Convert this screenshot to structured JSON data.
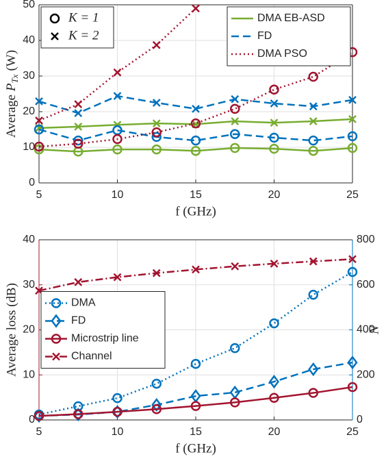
{
  "chart_data": [
    {
      "type": "line",
      "xlabel": "f (GHz)",
      "ylabel": {
        "text": "Average",
        "symbol": "P",
        "subscript": "Tx",
        "unit": "(W)"
      },
      "x": [
        5,
        7.5,
        10,
        12.5,
        15,
        17.5,
        20,
        22.5,
        25
      ],
      "xlim": [
        5,
        25
      ],
      "xticks": [
        5,
        10,
        15,
        20,
        25
      ],
      "ylim": [
        0,
        50
      ],
      "yticks": [
        0,
        10,
        20,
        30,
        40,
        50
      ],
      "grid": true,
      "legend": "upper right",
      "marker_legend_position": "upper left",
      "marker_legend": [
        {
          "name": "K = 1",
          "marker": "circle"
        },
        {
          "name": "K = 2",
          "marker": "x"
        }
      ],
      "series": [
        {
          "name": "DMA EB-ASD",
          "color": "#77ac30",
          "line": "solid",
          "values": [
            [
              9.4,
              8.8,
              9.4,
              9.4,
              9.0,
              9.8,
              9.6,
              9.0,
              9.8
            ],
            [
              15.4,
              15.8,
              16.3,
              16.7,
              16.5,
              17.3,
              16.9,
              17.3,
              17.9
            ]
          ]
        },
        {
          "name": "FD",
          "color": "#0072bd",
          "line": "dashed",
          "values": [
            [
              15.0,
              11.9,
              14.8,
              12.9,
              11.9,
              13.7,
              12.7,
              11.9,
              13.1
            ],
            [
              22.9,
              19.6,
              24.4,
              22.5,
              20.8,
              23.5,
              22.3,
              21.5,
              23.3
            ]
          ]
        },
        {
          "name": "DMA PSO",
          "color": "#a2142f",
          "line": "dotted",
          "values": [
            [
              10.2,
              11.0,
              12.3,
              14.2,
              16.7,
              20.8,
              26.2,
              29.8,
              36.7
            ],
            [
              17.5,
              22.1,
              31.0,
              38.7,
              49.0,
              null,
              null,
              null,
              null
            ]
          ]
        }
      ]
    },
    {
      "type": "line",
      "xlabel": "f (GHz)",
      "ylabel": "Average loss (dB)",
      "y2label": "N",
      "x": [
        5,
        7.5,
        10,
        12.5,
        15,
        17.5,
        20,
        22.5,
        25
      ],
      "xlim": [
        5,
        25
      ],
      "xticks": [
        5,
        10,
        15,
        20,
        25
      ],
      "ylim": [
        0,
        40
      ],
      "yticks": [
        0,
        10,
        20,
        30,
        40
      ],
      "y2lim": [
        0,
        800
      ],
      "y2ticks": [
        0,
        200,
        400,
        600,
        800
      ],
      "ycolor": "#a2142f",
      "y2color": "#0072bd",
      "grid": true,
      "legend": "center left",
      "series": [
        {
          "name": "DMA",
          "color": "#0072bd",
          "line": "dotted",
          "marker": "circle",
          "axis": "y2",
          "values": [
            24,
            61,
            97,
            161,
            249,
            319,
            429,
            556,
            657
          ]
        },
        {
          "name": "FD",
          "color": "#0072bd",
          "line": "dashed",
          "marker": "diamond",
          "axis": "y2",
          "values": [
            18,
            24,
            36,
            67,
            106,
            122,
            170,
            225,
            255
          ]
        },
        {
          "name": "Microstrip line",
          "color": "#a2142f",
          "line": "solid",
          "marker": "circle",
          "axis": "y",
          "values": [
            0.9,
            1.3,
            1.8,
            2.4,
            3.1,
            3.9,
            4.9,
            6.0,
            7.3
          ]
        },
        {
          "name": "Channel",
          "color": "#a2142f",
          "line": "dashdot",
          "marker": "x",
          "axis": "y",
          "values": [
            28.7,
            30.6,
            31.7,
            32.6,
            33.4,
            34.1,
            34.7,
            35.2,
            35.7
          ]
        }
      ]
    }
  ]
}
